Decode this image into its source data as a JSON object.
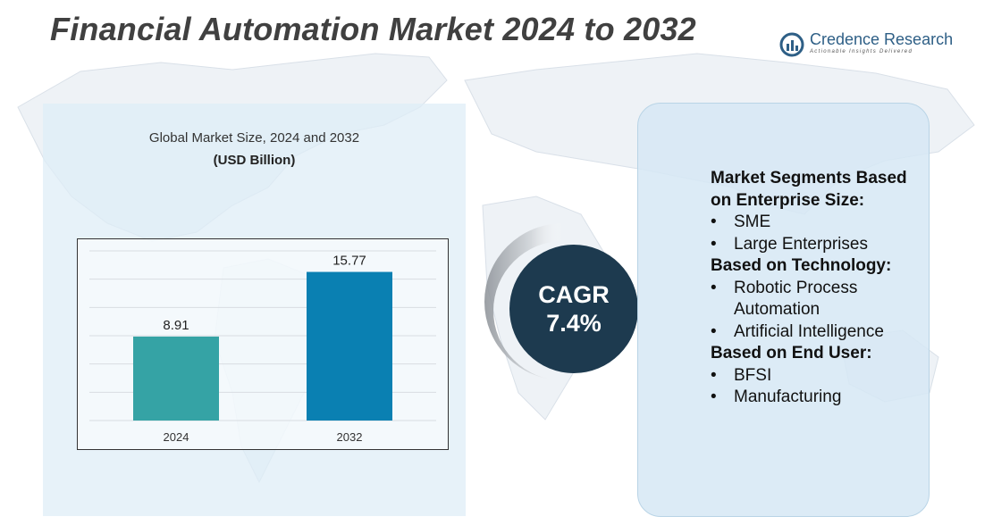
{
  "header": {
    "title": "Financial Automation Market 2024 to 2032"
  },
  "logo": {
    "name": "Credence Research",
    "tagline": "Actionable Insights Delivered"
  },
  "chart_data": {
    "type": "bar",
    "title": "Global Market Size, 2024 and 2032",
    "subtitle": "(USD Billion)",
    "categories": [
      "2024",
      "2032"
    ],
    "values": [
      8.91,
      15.77
    ],
    "value_labels": [
      "8.91",
      "15.77"
    ],
    "bar_colors": [
      "#35a3a5",
      "#0a80b2"
    ],
    "ylim": [
      0,
      18
    ],
    "grid": true,
    "xlabel": "",
    "ylabel": ""
  },
  "cagr": {
    "label": "CAGR",
    "value": "7.4%"
  },
  "segments": {
    "groups": [
      {
        "heading": "Market Segments Based on Enterprise Size:",
        "items": [
          "SME",
          "Large Enterprises"
        ]
      },
      {
        "heading": "Based on Technology:",
        "items": [
          "Robotic Process Automation",
          "Artificial Intelligence"
        ]
      },
      {
        "heading": "Based on End User:",
        "items": [
          "BFSI",
          "Manufacturing"
        ]
      }
    ]
  },
  "colors": {
    "panel": "#deedf7",
    "cagr_circle": "#1d3a4f",
    "accent": "#2e5f86"
  }
}
